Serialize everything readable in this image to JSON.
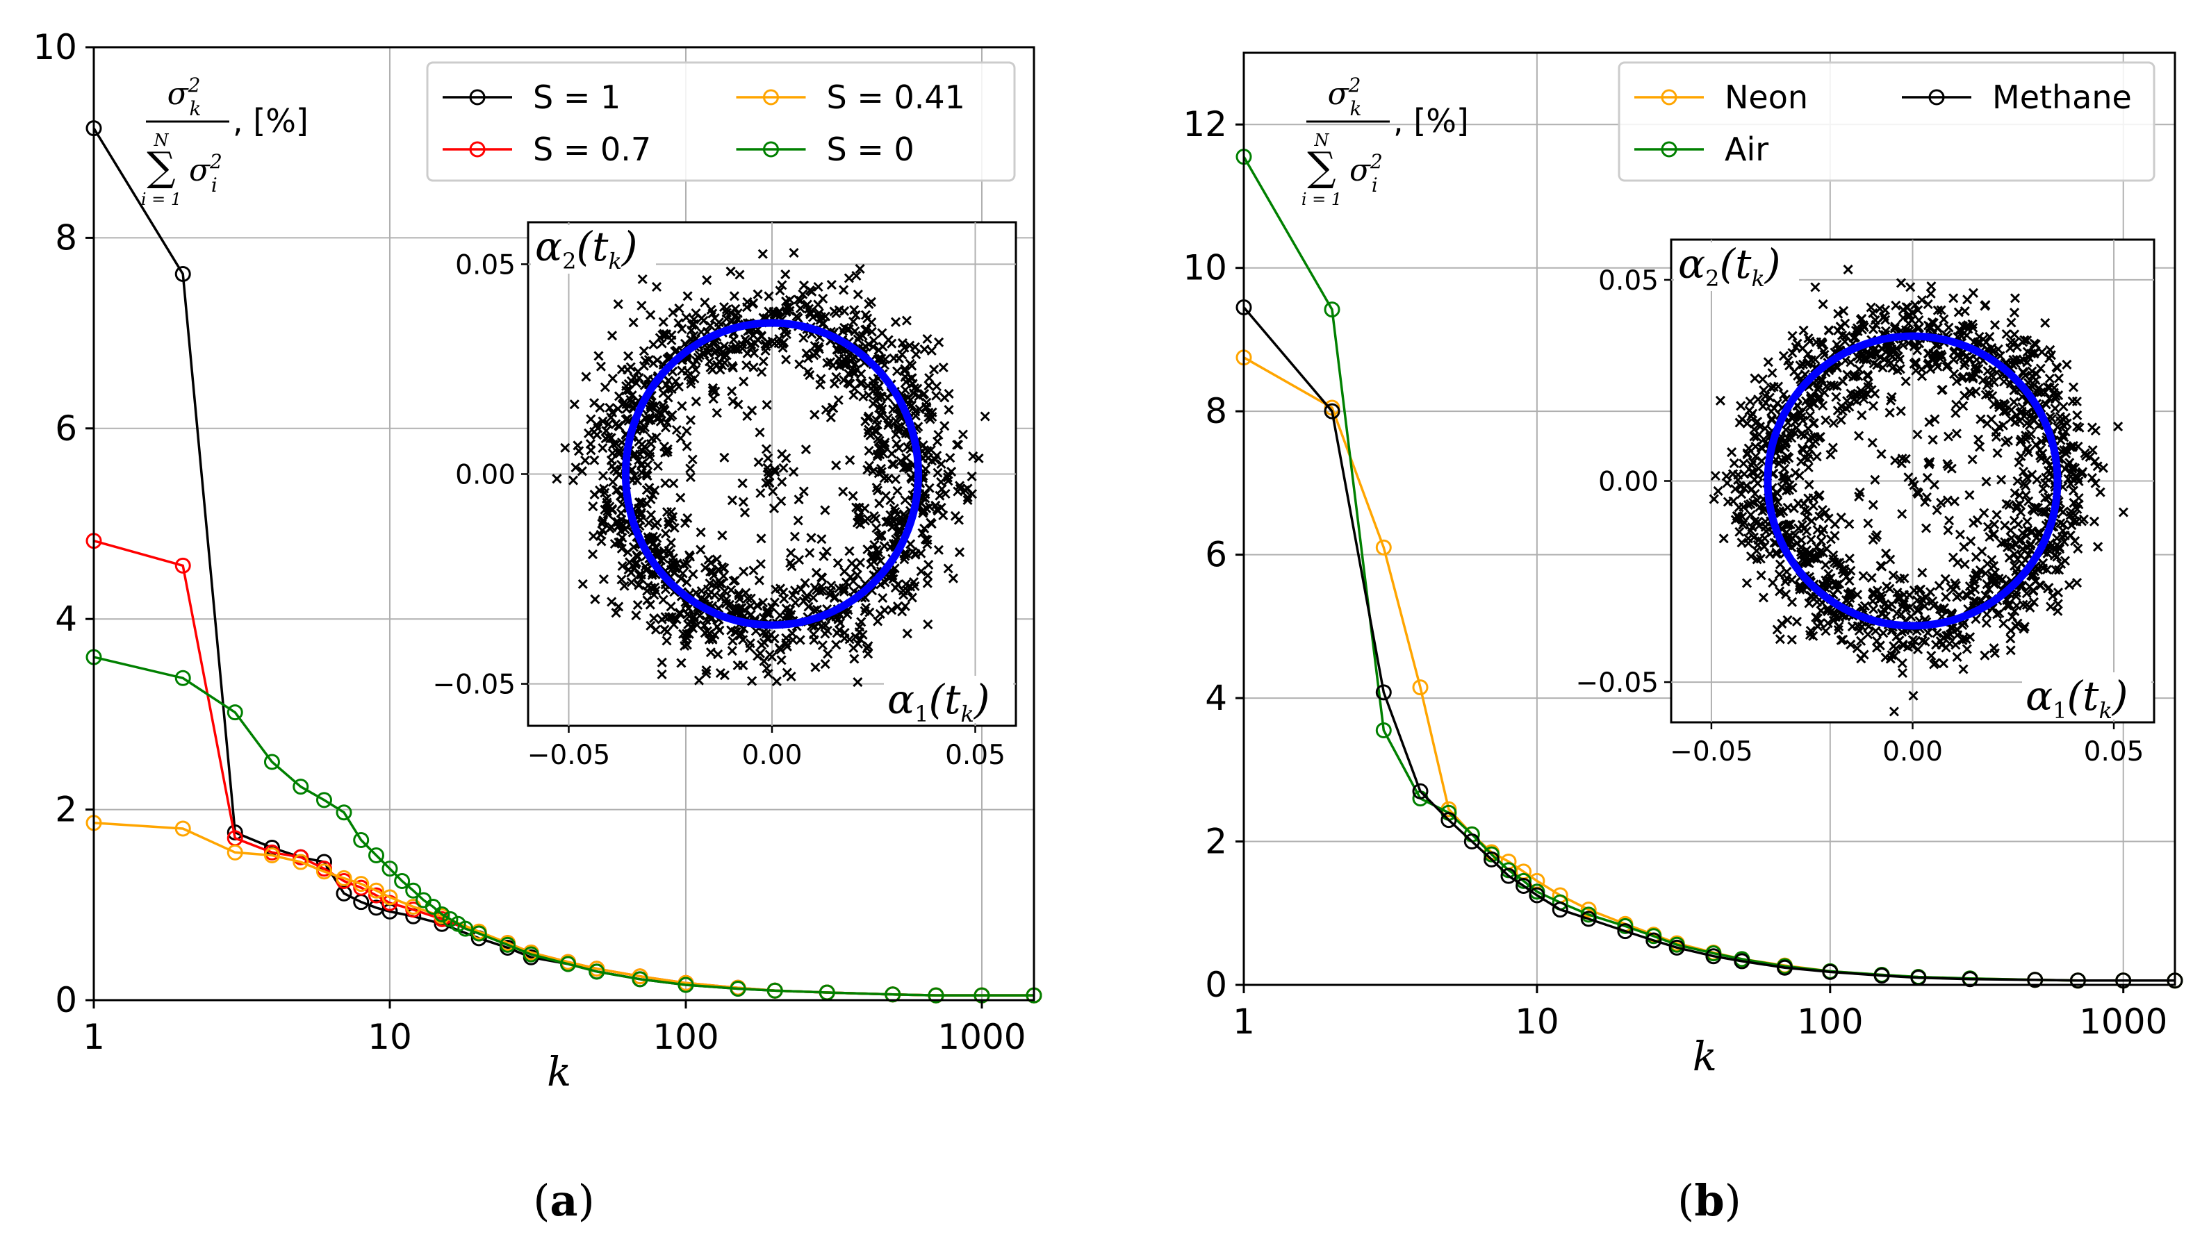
{
  "chart_data": [
    {
      "panel": "a",
      "caption_open": "(",
      "caption_letter": "a",
      "caption_close": ")",
      "type": "line",
      "xscale": "log",
      "xlabel": "k",
      "xlim": [
        1,
        1500
      ],
      "ylim": [
        0,
        10
      ],
      "xticks": [
        1,
        10,
        100,
        1000
      ],
      "xtick_labels": [
        "1",
        "10",
        "100",
        "1000"
      ],
      "yticks": [
        0,
        2,
        4,
        6,
        8,
        10
      ],
      "ytick_labels": [
        "0",
        "2",
        "4",
        "6",
        "8",
        "10"
      ],
      "ylabel": {
        "sigma_k": "σ",
        "sub_k": "k",
        "sup_2": "2",
        "upper": "N",
        "sum": "∑",
        "lower": "i = 1",
        "sigma_i": "σ",
        "sub_i": "i",
        "unit": ", [%]"
      },
      "legend": {
        "placement": "top-right",
        "ncol": 2
      },
      "series": [
        {
          "name": "S = 1",
          "color": "#000000",
          "k": [
            1,
            2,
            3,
            4,
            5,
            6,
            7,
            8,
            9,
            10,
            12,
            15,
            20,
            25,
            30,
            40,
            50,
            70,
            100,
            150,
            200,
            300,
            500,
            700,
            1000,
            1500
          ],
          "values": [
            9.15,
            7.62,
            1.76,
            1.6,
            1.5,
            1.45,
            1.12,
            1.03,
            0.97,
            0.93,
            0.88,
            0.8,
            0.65,
            0.55,
            0.45,
            0.38,
            0.3,
            0.22,
            0.16,
            0.12,
            0.1,
            0.08,
            0.06,
            0.05,
            0.05,
            0.05
          ]
        },
        {
          "name": "S = 0.7",
          "color": "#ff0000",
          "k": [
            1,
            2,
            3,
            4,
            5,
            6,
            7,
            8,
            9,
            10,
            12,
            15,
            20,
            25,
            30,
            40,
            50,
            70,
            100,
            150,
            200,
            300,
            500,
            700,
            1000,
            1500
          ],
          "values": [
            4.82,
            4.56,
            1.7,
            1.55,
            1.5,
            1.38,
            1.25,
            1.18,
            1.1,
            1.02,
            0.95,
            0.85,
            0.7,
            0.6,
            0.5,
            0.4,
            0.33,
            0.25,
            0.18,
            0.13,
            0.1,
            0.08,
            0.06,
            0.05,
            0.05,
            0.05
          ]
        },
        {
          "name": "S = 0.41",
          "color": "#ffa500",
          "k": [
            1,
            2,
            3,
            4,
            5,
            6,
            7,
            8,
            9,
            10,
            12,
            15,
            20,
            25,
            30,
            40,
            50,
            70,
            100,
            150,
            200,
            300,
            500,
            700,
            1000,
            1500
          ],
          "values": [
            1.86,
            1.8,
            1.55,
            1.52,
            1.45,
            1.35,
            1.28,
            1.22,
            1.15,
            1.08,
            0.98,
            0.88,
            0.72,
            0.6,
            0.5,
            0.4,
            0.33,
            0.25,
            0.18,
            0.13,
            0.1,
            0.08,
            0.06,
            0.05,
            0.05,
            0.05
          ]
        },
        {
          "name": "S = 0",
          "color": "#008000",
          "k": [
            1,
            2,
            3,
            4,
            5,
            6,
            7,
            8,
            9,
            10,
            11,
            12,
            13,
            14,
            15,
            16,
            17,
            18,
            20,
            25,
            30,
            40,
            50,
            70,
            100,
            150,
            200,
            300,
            500,
            700,
            1000,
            1500
          ],
          "values": [
            3.6,
            3.38,
            3.02,
            2.5,
            2.24,
            2.1,
            1.97,
            1.68,
            1.52,
            1.38,
            1.25,
            1.15,
            1.05,
            0.98,
            0.9,
            0.85,
            0.8,
            0.75,
            0.7,
            0.58,
            0.48,
            0.38,
            0.3,
            0.22,
            0.16,
            0.12,
            0.1,
            0.08,
            0.06,
            0.05,
            0.05,
            0.05
          ]
        }
      ],
      "inset": {
        "type": "scatter",
        "xlabel": "α1(tk)",
        "ylabel": "α2(tk)",
        "xlabel_parts": {
          "alpha": "α",
          "sub": "1",
          "arg_open": "(t",
          "arg_sub": "k",
          "arg_close": ")"
        },
        "ylabel_parts": {
          "alpha": "α",
          "sub": "2",
          "arg_open": "(t",
          "arg_sub": "k",
          "arg_close": ")"
        },
        "xlim": [
          -0.06,
          0.06
        ],
        "ylim": [
          -0.06,
          0.06
        ],
        "xticks": [
          -0.05,
          0.0,
          0.05
        ],
        "yticks": [
          -0.05,
          0.0,
          0.05
        ],
        "xtick_labels": [
          "−0.05",
          "0.00",
          "0.05"
        ],
        "ytick_labels": [
          "−0.05",
          "0.00",
          "0.05"
        ],
        "points_description": "ring of about 1500 samples around radius 0.037",
        "ring_mean_radius": 0.037,
        "ring_spread": 0.006,
        "n_points": 1500,
        "marker": "x",
        "point_color": "#000000",
        "circle": {
          "radius": 0.036,
          "color": "#0000ff"
        }
      }
    },
    {
      "panel": "b",
      "caption_open": "(",
      "caption_letter": "b",
      "caption_close": ")",
      "type": "line",
      "xscale": "log",
      "xlabel": "k",
      "xlim": [
        1,
        1500
      ],
      "ylim": [
        0,
        13
      ],
      "xticks": [
        1,
        10,
        100,
        1000
      ],
      "xtick_labels": [
        "1",
        "10",
        "100",
        "1000"
      ],
      "yticks": [
        0,
        2,
        4,
        6,
        8,
        10,
        12
      ],
      "ytick_labels": [
        "0",
        "2",
        "4",
        "6",
        "8",
        "10",
        "12"
      ],
      "ylabel": {
        "sigma_k": "σ",
        "sub_k": "k",
        "sup_2": "2",
        "upper": "N",
        "sum": "∑",
        "lower": "i = 1",
        "sigma_i": "σ",
        "sub_i": "i",
        "unit": ", [%]"
      },
      "legend": {
        "placement": "top-right",
        "ncol": 2
      },
      "series": [
        {
          "name": "Neon",
          "color": "#ffa500",
          "k": [
            1,
            2,
            3,
            4,
            5,
            6,
            7,
            8,
            9,
            10,
            12,
            15,
            20,
            25,
            30,
            40,
            50,
            70,
            100,
            150,
            200,
            300,
            500,
            700,
            1000,
            1500
          ],
          "values": [
            8.75,
            8.05,
            6.1,
            4.15,
            2.45,
            2.1,
            1.85,
            1.72,
            1.58,
            1.45,
            1.25,
            1.05,
            0.85,
            0.7,
            0.58,
            0.45,
            0.36,
            0.27,
            0.19,
            0.14,
            0.11,
            0.09,
            0.07,
            0.06,
            0.06,
            0.06
          ]
        },
        {
          "name": "Air",
          "color": "#008000",
          "k": [
            1,
            2,
            3,
            4,
            5,
            6,
            7,
            8,
            9,
            10,
            12,
            15,
            20,
            25,
            30,
            40,
            50,
            70,
            100,
            150,
            200,
            300,
            500,
            700,
            1000,
            1500
          ],
          "values": [
            11.55,
            9.42,
            3.55,
            2.6,
            2.4,
            2.1,
            1.82,
            1.6,
            1.45,
            1.3,
            1.15,
            0.98,
            0.82,
            0.68,
            0.56,
            0.44,
            0.36,
            0.26,
            0.19,
            0.14,
            0.11,
            0.09,
            0.07,
            0.06,
            0.06,
            0.06
          ]
        },
        {
          "name": "Methane",
          "color": "#000000",
          "k": [
            1,
            2,
            3,
            4,
            5,
            6,
            7,
            8,
            9,
            10,
            12,
            15,
            20,
            25,
            30,
            40,
            50,
            70,
            100,
            150,
            200,
            300,
            500,
            700,
            1000,
            1500
          ],
          "values": [
            9.45,
            8.0,
            4.08,
            2.7,
            2.3,
            2.0,
            1.75,
            1.52,
            1.38,
            1.25,
            1.05,
            0.92,
            0.75,
            0.62,
            0.52,
            0.4,
            0.33,
            0.24,
            0.18,
            0.13,
            0.1,
            0.08,
            0.07,
            0.06,
            0.06,
            0.06
          ]
        }
      ],
      "inset": {
        "type": "scatter",
        "xlabel": "α1(tk)",
        "ylabel": "α2(tk)",
        "xlabel_parts": {
          "alpha": "α",
          "sub": "1",
          "arg_open": "(t",
          "arg_sub": "k",
          "arg_close": ")"
        },
        "ylabel_parts": {
          "alpha": "α",
          "sub": "2",
          "arg_open": "(t",
          "arg_sub": "k",
          "arg_close": ")"
        },
        "xlim": [
          -0.06,
          0.06
        ],
        "ylim": [
          -0.06,
          0.06
        ],
        "xticks": [
          -0.05,
          0.0,
          0.05
        ],
        "yticks": [
          -0.05,
          0.0,
          0.05
        ],
        "xtick_labels": [
          "−0.05",
          "0.00",
          "0.05"
        ],
        "ytick_labels": [
          "−0.05",
          "0.00",
          "0.05"
        ],
        "points_description": "ring of about 1500 samples around radius 0.036",
        "ring_mean_radius": 0.036,
        "ring_spread": 0.006,
        "n_points": 1500,
        "marker": "x",
        "point_color": "#000000",
        "circle": {
          "radius": 0.036,
          "color": "#0000ff"
        }
      }
    }
  ]
}
